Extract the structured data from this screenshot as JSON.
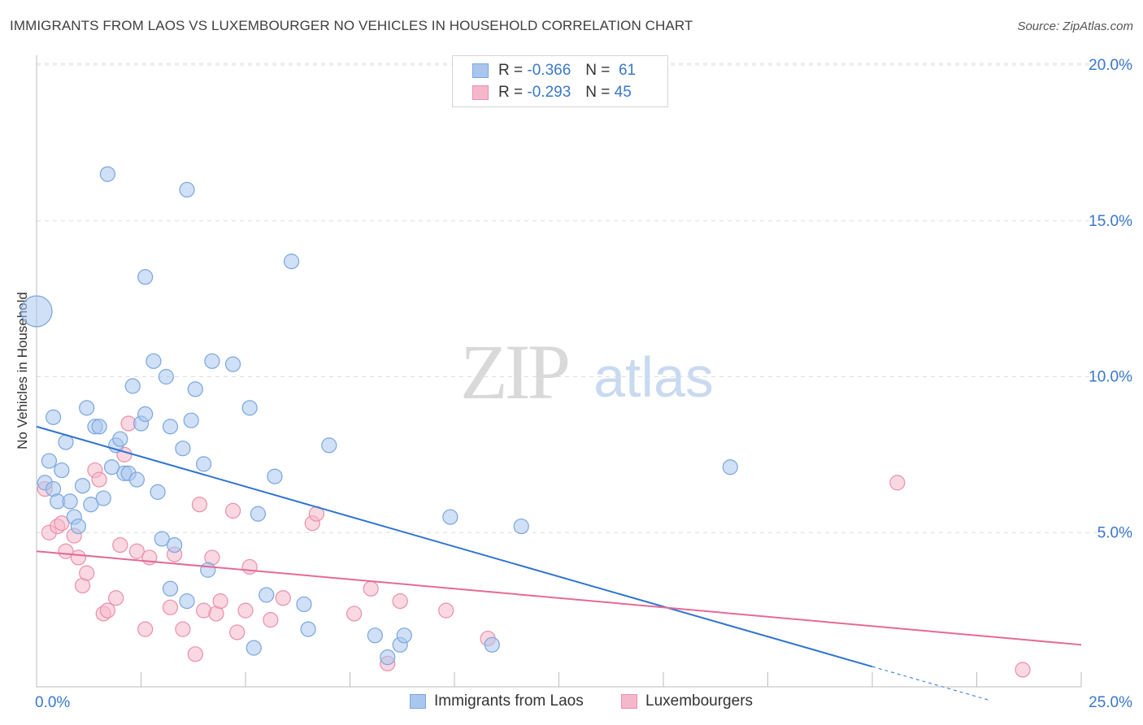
{
  "title": "IMMIGRANTS FROM LAOS VS LUXEMBOURGER NO VEHICLES IN HOUSEHOLD CORRELATION CHART",
  "source": "Source: ZipAtlas.com",
  "watermark": {
    "zip": "ZIP",
    "atlas": "atlas"
  },
  "legend": {
    "rows": [
      {
        "r_label": "R =",
        "r_value": "-0.366",
        "n_label": "N =",
        "n_value": "61"
      },
      {
        "r_label": "R =",
        "r_value": "-0.293",
        "n_label": "N =",
        "n_value": "45"
      }
    ]
  },
  "colors": {
    "blue_fill": "#a9c7ee",
    "blue_stroke": "#7aa6dc",
    "blue_line": "#2f74d0",
    "pink_fill": "#f5b8cb",
    "pink_stroke": "#e98fab",
    "pink_line": "#e46a95",
    "tick_label": "#3a78c9",
    "grid": "#dddddd"
  },
  "chart_data": {
    "type": "scatter",
    "title": "IMMIGRANTS FROM LAOS VS LUXEMBOURGER NO VEHICLES IN HOUSEHOLD CORRELATION CHART",
    "xlabel": "",
    "ylabel": "No Vehicles in Household",
    "xlim": [
      0,
      25
    ],
    "ylim": [
      0,
      20
    ],
    "x_tick_labels": [
      "0.0%",
      "25.0%"
    ],
    "y_tick_labels": [
      "5.0%",
      "10.0%",
      "15.0%",
      "20.0%"
    ],
    "y_ticks": [
      5,
      10,
      15,
      20
    ],
    "grid": true,
    "legend_position": "bottom",
    "series": [
      {
        "name": "Immigrants from Laos",
        "trend": {
          "x0": 0,
          "y0": 8.4,
          "x1": 20,
          "y1": 0.7,
          "dash_to_x": 22.8
        },
        "points": [
          [
            0.0,
            12.1,
            "L"
          ],
          [
            1.7,
            16.5
          ],
          [
            3.6,
            16.0
          ],
          [
            2.6,
            13.2
          ],
          [
            6.1,
            13.7
          ],
          [
            0.2,
            6.6
          ],
          [
            0.3,
            7.3
          ],
          [
            0.4,
            8.7
          ],
          [
            0.4,
            6.4
          ],
          [
            0.5,
            6.0
          ],
          [
            0.6,
            7.0
          ],
          [
            0.7,
            7.9
          ],
          [
            0.8,
            6.0
          ],
          [
            0.9,
            5.5
          ],
          [
            1.0,
            5.2
          ],
          [
            1.1,
            6.5
          ],
          [
            1.2,
            9.0
          ],
          [
            1.3,
            5.9
          ],
          [
            1.4,
            8.4
          ],
          [
            1.5,
            8.4
          ],
          [
            1.6,
            6.1
          ],
          [
            1.8,
            7.1
          ],
          [
            1.9,
            7.8
          ],
          [
            2.0,
            8.0
          ],
          [
            2.1,
            6.9
          ],
          [
            2.2,
            6.9
          ],
          [
            2.3,
            9.7
          ],
          [
            2.4,
            6.7
          ],
          [
            2.5,
            8.5
          ],
          [
            2.6,
            8.8
          ],
          [
            2.8,
            10.5
          ],
          [
            2.9,
            6.3
          ],
          [
            3.0,
            4.8
          ],
          [
            3.1,
            10.0
          ],
          [
            3.2,
            3.2
          ],
          [
            3.2,
            8.4
          ],
          [
            3.3,
            4.6
          ],
          [
            3.5,
            7.7
          ],
          [
            3.6,
            2.8
          ],
          [
            3.7,
            8.6
          ],
          [
            3.8,
            9.6
          ],
          [
            4.0,
            7.2
          ],
          [
            4.1,
            3.8
          ],
          [
            4.2,
            10.5
          ],
          [
            4.7,
            10.4
          ],
          [
            5.1,
            9.0
          ],
          [
            5.2,
            1.3
          ],
          [
            5.3,
            5.6
          ],
          [
            5.5,
            3.0
          ],
          [
            5.7,
            6.8
          ],
          [
            6.4,
            2.7
          ],
          [
            6.5,
            1.9
          ],
          [
            7.0,
            7.8
          ],
          [
            8.1,
            1.7
          ],
          [
            8.4,
            1.0
          ],
          [
            8.7,
            1.4
          ],
          [
            8.8,
            1.7
          ],
          [
            9.9,
            5.5
          ],
          [
            10.9,
            1.4
          ],
          [
            11.6,
            5.2
          ],
          [
            16.6,
            7.1
          ]
        ]
      },
      {
        "name": "Luxembourgers",
        "trend": {
          "x0": 0,
          "y0": 4.4,
          "x1": 25,
          "y1": 1.4
        },
        "points": [
          [
            0.2,
            6.4
          ],
          [
            0.3,
            5.0
          ],
          [
            0.5,
            5.2
          ],
          [
            0.6,
            5.3
          ],
          [
            0.7,
            4.4
          ],
          [
            0.9,
            4.9
          ],
          [
            1.0,
            4.2
          ],
          [
            1.1,
            3.3
          ],
          [
            1.2,
            3.7
          ],
          [
            1.4,
            7.0
          ],
          [
            1.5,
            6.7
          ],
          [
            1.6,
            2.4
          ],
          [
            1.7,
            2.5
          ],
          [
            1.9,
            2.9
          ],
          [
            2.0,
            4.6
          ],
          [
            2.1,
            7.5
          ],
          [
            2.2,
            8.5
          ],
          [
            2.4,
            4.4
          ],
          [
            2.6,
            1.9
          ],
          [
            2.7,
            4.2
          ],
          [
            3.2,
            2.6
          ],
          [
            3.3,
            4.3
          ],
          [
            3.5,
            1.9
          ],
          [
            3.8,
            1.1
          ],
          [
            3.9,
            5.9
          ],
          [
            4.0,
            2.5
          ],
          [
            4.2,
            4.2
          ],
          [
            4.3,
            2.4
          ],
          [
            4.4,
            2.8
          ],
          [
            4.7,
            5.7
          ],
          [
            4.8,
            1.8
          ],
          [
            5.0,
            2.5
          ],
          [
            5.1,
            3.9
          ],
          [
            5.6,
            2.2
          ],
          [
            5.9,
            2.9
          ],
          [
            6.6,
            5.3
          ],
          [
            6.7,
            5.6
          ],
          [
            7.6,
            2.4
          ],
          [
            8.0,
            3.2
          ],
          [
            8.4,
            0.8
          ],
          [
            8.7,
            2.8
          ],
          [
            9.8,
            2.5
          ],
          [
            10.8,
            1.6
          ],
          [
            20.6,
            6.6
          ],
          [
            23.6,
            0.6
          ]
        ]
      }
    ]
  }
}
